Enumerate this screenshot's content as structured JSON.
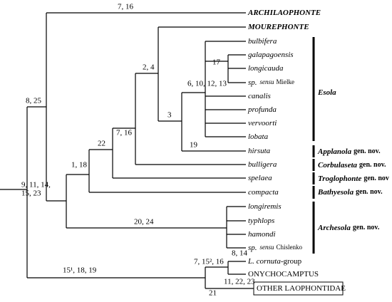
{
  "leaves": [
    {
      "name": "ARCHILAOPHONTE"
    },
    {
      "name": "MOUREPHONTE"
    },
    {
      "name": "bulbifera"
    },
    {
      "name": "galapagoensis"
    },
    {
      "name": "longicauda"
    },
    {
      "name": "sp.",
      "sensu": "sensu",
      "author": "Mielke"
    },
    {
      "name": "canalis"
    },
    {
      "name": "profunda"
    },
    {
      "name": "vervoorti"
    },
    {
      "name": "lobata"
    },
    {
      "name": "hirsuta"
    },
    {
      "name": "bulligera"
    },
    {
      "name": "spelaea"
    },
    {
      "name": "compacta"
    },
    {
      "name": "longiremis"
    },
    {
      "name": "typhlops"
    },
    {
      "name": "hamondi"
    },
    {
      "name": "sp.",
      "sensu": "sensu",
      "author": "Chislenko"
    },
    {
      "name": "L. cornuta",
      "suffix": "-group"
    },
    {
      "name": "ONYCHOCAMPTUS"
    },
    {
      "name": "OTHER LAOPHONTIDAE"
    }
  ],
  "node_labels": [
    "7, 16",
    "8, 25",
    "2, 4",
    "17",
    "6, 10, 12, 13",
    "3",
    "7, 16",
    "19",
    "22",
    "1, 18",
    "9, 11, 14,",
    "15, 23",
    "20, 24",
    "8, 14",
    "7, 15², 16",
    "15¹, 18, 19",
    "11, 22, 23",
    "21"
  ],
  "clades": [
    {
      "name": "Esola"
    },
    {
      "name": "Applanola",
      "suffix": "gen. nov."
    },
    {
      "name": "Corbulaseta",
      "suffix": "gen. nov."
    },
    {
      "name": "Troglophonte",
      "suffix": "gen. nov"
    },
    {
      "name": "Bathyesola",
      "suffix": "gen. nov."
    },
    {
      "name": "Archesola",
      "suffix": "gen. nov."
    }
  ]
}
